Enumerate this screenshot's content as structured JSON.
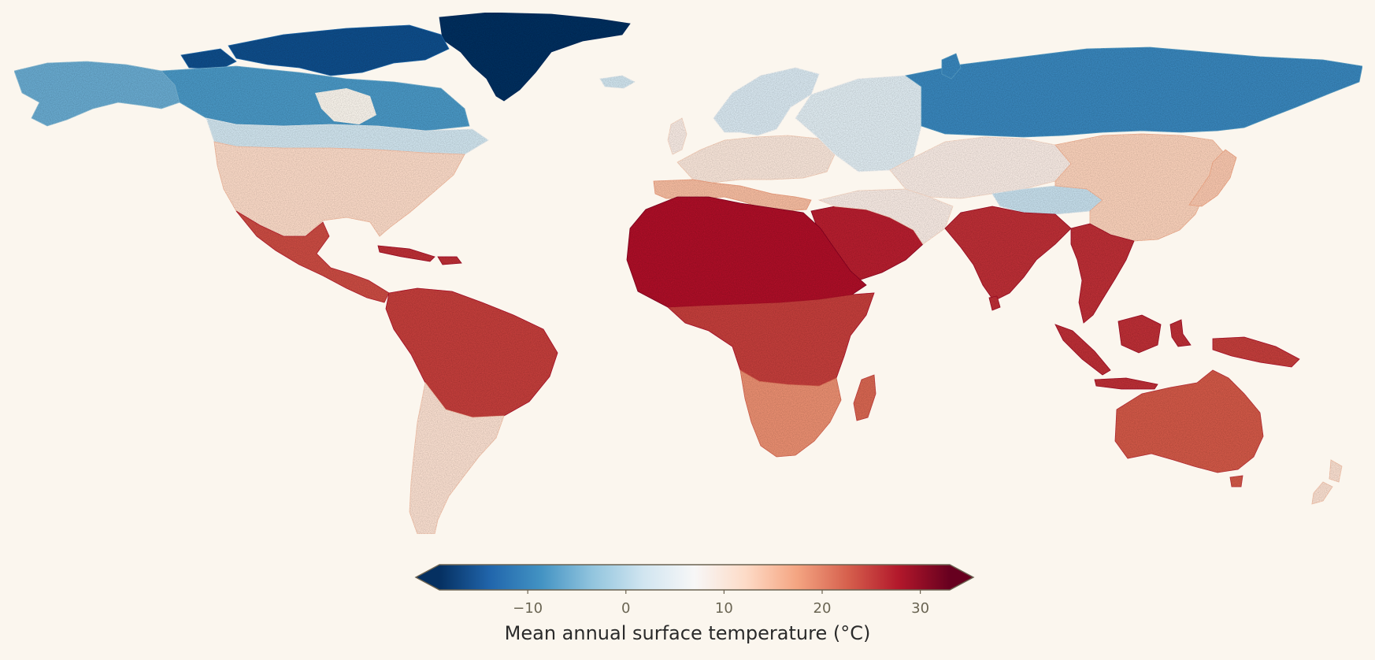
{
  "map": {
    "projection": "equirectangular",
    "colormap": "RdBu_r",
    "background_color": "#fbf6ee",
    "regions": [
      {
        "name": "Greenland",
        "temp_c": -22
      },
      {
        "name": "Canadian Arctic Archipelago",
        "temp_c": -16
      },
      {
        "name": "Alaska",
        "temp_c": -6
      },
      {
        "name": "Northern Canada",
        "temp_c": -8
      },
      {
        "name": "Southern Canada",
        "temp_c": 2
      },
      {
        "name": "United States",
        "temp_c": 12
      },
      {
        "name": "Mexico and Central America",
        "temp_c": 24
      },
      {
        "name": "Caribbean islands",
        "temp_c": 26
      },
      {
        "name": "Northern South America",
        "temp_c": 25
      },
      {
        "name": "Southern South America",
        "temp_c": 11
      },
      {
        "name": "Iceland",
        "temp_c": 2
      },
      {
        "name": "Scandinavia",
        "temp_c": 3
      },
      {
        "name": "Western and Central Europe",
        "temp_c": 10
      },
      {
        "name": "Mediterranean Europe",
        "temp_c": 15
      },
      {
        "name": "Great Britain",
        "temp_c": 9
      },
      {
        "name": "North Africa and Sahara",
        "temp_c": 28
      },
      {
        "name": "Central Africa",
        "temp_c": 25
      },
      {
        "name": "Southern Africa",
        "temp_c": 19
      },
      {
        "name": "Madagascar",
        "temp_c": 22
      },
      {
        "name": "Arabian Peninsula",
        "temp_c": 27
      },
      {
        "name": "Western Russia",
        "temp_c": 4
      },
      {
        "name": "Siberia",
        "temp_c": -10
      },
      {
        "name": "Central Asia",
        "temp_c": 9
      },
      {
        "name": "Tibetan Plateau",
        "temp_c": 1
      },
      {
        "name": "China",
        "temp_c": 13
      },
      {
        "name": "Indian subcontinent",
        "temp_c": 26
      },
      {
        "name": "Southeast Asia",
        "temp_c": 26
      },
      {
        "name": "Japan",
        "temp_c": 14
      },
      {
        "name": "Indonesia and Malaysia",
        "temp_c": 26
      },
      {
        "name": "New Guinea",
        "temp_c": 25
      },
      {
        "name": "Australia",
        "temp_c": 23
      },
      {
        "name": "New Zealand",
        "temp_c": 11
      }
    ]
  },
  "colorbar": {
    "min": -19,
    "max": 33,
    "extend": "both",
    "ticks": [
      {
        "value": -10,
        "label": "−10"
      },
      {
        "value": 0,
        "label": "0"
      },
      {
        "value": 10,
        "label": "10"
      },
      {
        "value": 20,
        "label": "20"
      },
      {
        "value": 30,
        "label": "30"
      }
    ],
    "label": "Mean annual surface temperature (°C)",
    "under_color": "#053061",
    "over_color": "#67001f",
    "outline_color": "#6b6250"
  }
}
